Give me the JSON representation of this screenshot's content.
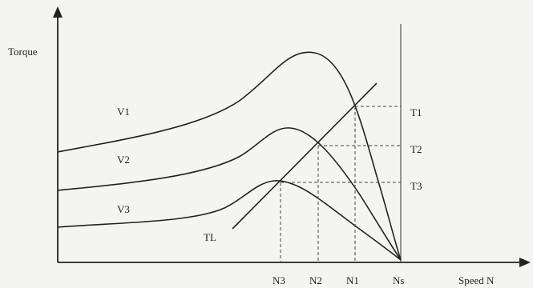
{
  "axis_labels": {
    "y": "Torque",
    "x": "Speed N"
  },
  "curves": {
    "v1": "V1",
    "v2": "V2",
    "v3": "V3",
    "load": "TL"
  },
  "torque_levels": [
    "T1",
    "T2",
    "T3"
  ],
  "speed_points": [
    "N3",
    "N2",
    "N1",
    "Ns"
  ]
}
